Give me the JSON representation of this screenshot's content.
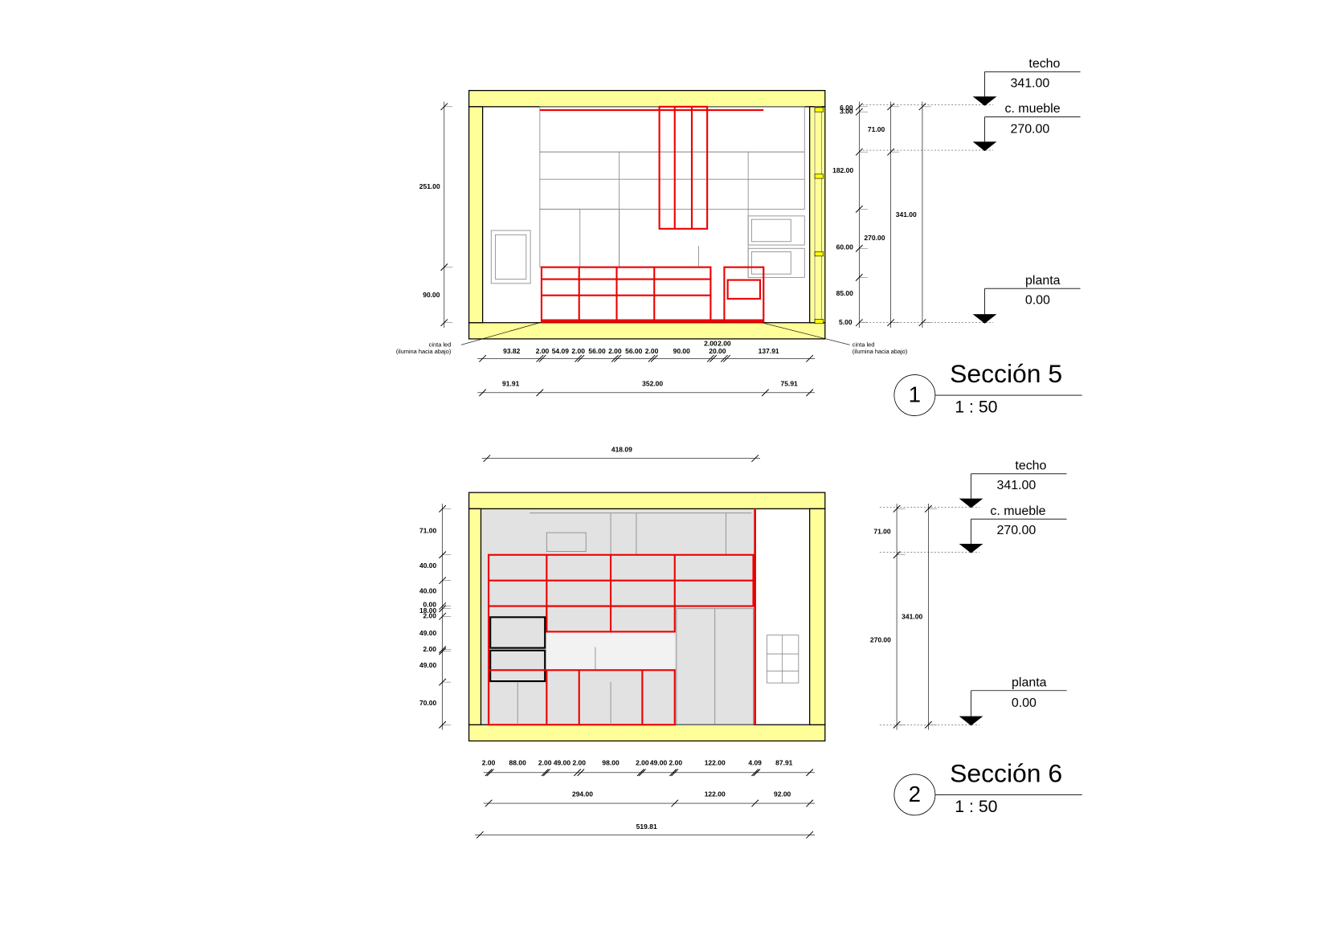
{
  "sections": [
    {
      "number": "1",
      "title": "Sección 5",
      "scale": "1 : 50",
      "levels": [
        {
          "name": "techo",
          "value": "341.00"
        },
        {
          "name": "c. mueble",
          "value": "270.00"
        },
        {
          "name": "planta",
          "value": "0.00"
        }
      ],
      "notes": [
        {
          "line1": "cinta led",
          "line2": "(ilumina hacia abajo)"
        },
        {
          "line1": "cinta led",
          "line2": "(ilumina hacia abajo)"
        }
      ],
      "dims": [
        "251.00",
        "90.00",
        "6.00",
        "3.00",
        "71.00",
        "182.00",
        "60.00",
        "85.00",
        "5.00",
        "270.00",
        "341.00",
        "93.82",
        "2.00",
        "54.09",
        "2.00",
        "56.00",
        "2.00",
        "56.00",
        "2.00",
        "90.00",
        "2.00",
        "2.00",
        "20.00",
        "137.91",
        "91.91",
        "352.00",
        "75.91"
      ]
    },
    {
      "number": "2",
      "title": "Sección 6",
      "scale": "1 : 50",
      "levels": [
        {
          "name": "techo",
          "value": "341.00"
        },
        {
          "name": "c. mueble",
          "value": "270.00"
        },
        {
          "name": "planta",
          "value": "0.00"
        }
      ],
      "notes": [],
      "dims": [
        "418.09",
        "71.00",
        "40.00",
        "40.00",
        "0.00",
        "18.00",
        "2.00",
        "49.00",
        "2.00",
        "49.00",
        "70.00",
        "71.00",
        "270.00",
        "341.00",
        "2.00",
        "88.00",
        "2.00",
        "49.00",
        "2.00",
        "98.00",
        "2.00",
        "49.00",
        "2.00",
        "122.00",
        "4.09",
        "87.91",
        "294.00",
        "122.00",
        "92.00",
        "519.81"
      ]
    }
  ]
}
